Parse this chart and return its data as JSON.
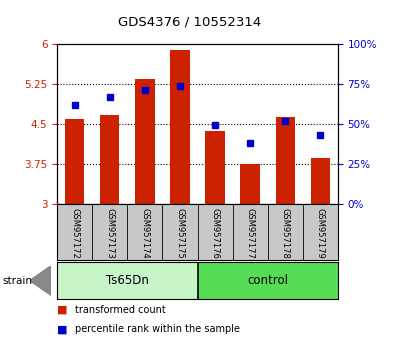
{
  "title": "GDS4376 / 10552314",
  "samples": [
    "GSM957172",
    "GSM957173",
    "GSM957174",
    "GSM957175",
    "GSM957176",
    "GSM957177",
    "GSM957178",
    "GSM957179"
  ],
  "red_values": [
    4.6,
    4.67,
    5.35,
    5.9,
    4.37,
    3.75,
    4.63,
    3.85
  ],
  "blue_values": [
    62,
    67,
    71,
    74,
    49,
    38,
    52,
    43
  ],
  "bar_bottom": 3.0,
  "ylim_left": [
    3.0,
    6.0
  ],
  "ylim_right": [
    0,
    100
  ],
  "yticks_left": [
    3,
    3.75,
    4.5,
    5.25,
    6
  ],
  "yticks_right": [
    0,
    25,
    50,
    75,
    100
  ],
  "ytick_labels_left": [
    "3",
    "3.75",
    "4.5",
    "5.25",
    "6"
  ],
  "ytick_labels_right": [
    "0%",
    "25%",
    "50%",
    "75%",
    "100%"
  ],
  "groups": [
    {
      "label": "Ts65Dn",
      "indices": [
        0,
        1,
        2,
        3
      ],
      "color": "#c8f5c8"
    },
    {
      "label": "control",
      "indices": [
        4,
        5,
        6,
        7
      ],
      "color": "#55dd55"
    }
  ],
  "strain_label": "strain",
  "bar_color": "#cc2200",
  "dot_color": "#0000cc",
  "bar_width": 0.55,
  "background_color": "#ffffff",
  "tick_area_color": "#c8c8c8",
  "left_tick_color": "#cc2200",
  "right_tick_color": "#0000cc",
  "legend_items": [
    {
      "color": "#cc2200",
      "label": "transformed count"
    },
    {
      "color": "#0000cc",
      "label": "percentile rank within the sample"
    }
  ]
}
